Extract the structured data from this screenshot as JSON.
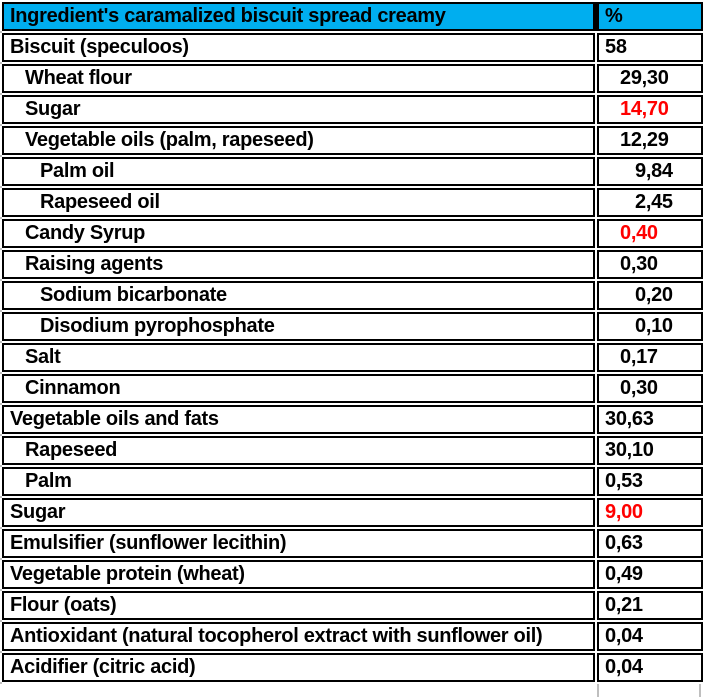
{
  "title": "Ingredient's caramalized biscuit spread creamy",
  "header": {
    "ingredient_label": "Ingredient's caramalized biscuit spread creamy",
    "percent_label": "%"
  },
  "colors": {
    "header_bg": "#00AEEF",
    "text": "#000000",
    "highlight": "#FF0000",
    "border": "#000000",
    "gridline": "#BFBFBF",
    "cell_bg": "#FFFFFF"
  },
  "chart_data": {
    "type": "table",
    "title": "Ingredient's caramalized biscuit spread creamy",
    "columns": [
      "Ingredient's caramalized biscuit spread creamy",
      "%"
    ],
    "rows": [
      {
        "label": "Biscuit (speculoos)",
        "value": "58",
        "label_indent": 0,
        "value_indent": 0,
        "red": false
      },
      {
        "label": "Wheat flour",
        "value": "29,30",
        "label_indent": 1,
        "value_indent": 1,
        "red": false
      },
      {
        "label": "Sugar",
        "value": "14,70",
        "label_indent": 1,
        "value_indent": 1,
        "red": true
      },
      {
        "label": "Vegetable oils (palm, rapeseed)",
        "value": "12,29",
        "label_indent": 1,
        "value_indent": 1,
        "red": false
      },
      {
        "label": "Palm oil",
        "value": "9,84",
        "label_indent": 2,
        "value_indent": 2,
        "red": false
      },
      {
        "label": "Rapeseed oil",
        "value": "2,45",
        "label_indent": 2,
        "value_indent": 2,
        "red": false
      },
      {
        "label": "Candy Syrup",
        "value": "0,40",
        "label_indent": 1,
        "value_indent": 1,
        "red": true
      },
      {
        "label": "Raising agents",
        "value": "0,30",
        "label_indent": 1,
        "value_indent": 1,
        "red": false
      },
      {
        "label": "Sodium bicarbonate",
        "value": "0,20",
        "label_indent": 2,
        "value_indent": 2,
        "red": false
      },
      {
        "label": "Disodium pyrophosphate",
        "value": "0,10",
        "label_indent": 2,
        "value_indent": 2,
        "red": false
      },
      {
        "label": "Salt",
        "value": "0,17",
        "label_indent": 1,
        "value_indent": 1,
        "red": false
      },
      {
        "label": "Cinnamon",
        "value": "0,30",
        "label_indent": 1,
        "value_indent": 1,
        "red": false
      },
      {
        "label": "Vegetable oils and fats",
        "value": "30,63",
        "label_indent": 0,
        "value_indent": 0,
        "red": false
      },
      {
        "label": "Rapeseed",
        "value": "30,10",
        "label_indent": 1,
        "value_indent": 0,
        "red": false
      },
      {
        "label": "Palm",
        "value": "0,53",
        "label_indent": 1,
        "value_indent": 0,
        "red": false
      },
      {
        "label": "Sugar",
        "value": "9,00",
        "label_indent": 0,
        "value_indent": 0,
        "red": true
      },
      {
        "label": "Emulsifier (sunflower lecithin)",
        "value": "0,63",
        "label_indent": 0,
        "value_indent": 0,
        "red": false
      },
      {
        "label": "Vegetable protein (wheat)",
        "value": "0,49",
        "label_indent": 0,
        "value_indent": 0,
        "red": false
      },
      {
        "label": "Flour (oats)",
        "value": "0,21",
        "label_indent": 0,
        "value_indent": 0,
        "red": false
      },
      {
        "label": "Antioxidant (natural tocopherol extract with sunflower oil)",
        "value": "0,04",
        "label_indent": 0,
        "value_indent": 0,
        "red": false
      },
      {
        "label": "Acidifier (citric acid)",
        "value": "0,04",
        "label_indent": 0,
        "value_indent": 0,
        "red": false
      }
    ]
  }
}
